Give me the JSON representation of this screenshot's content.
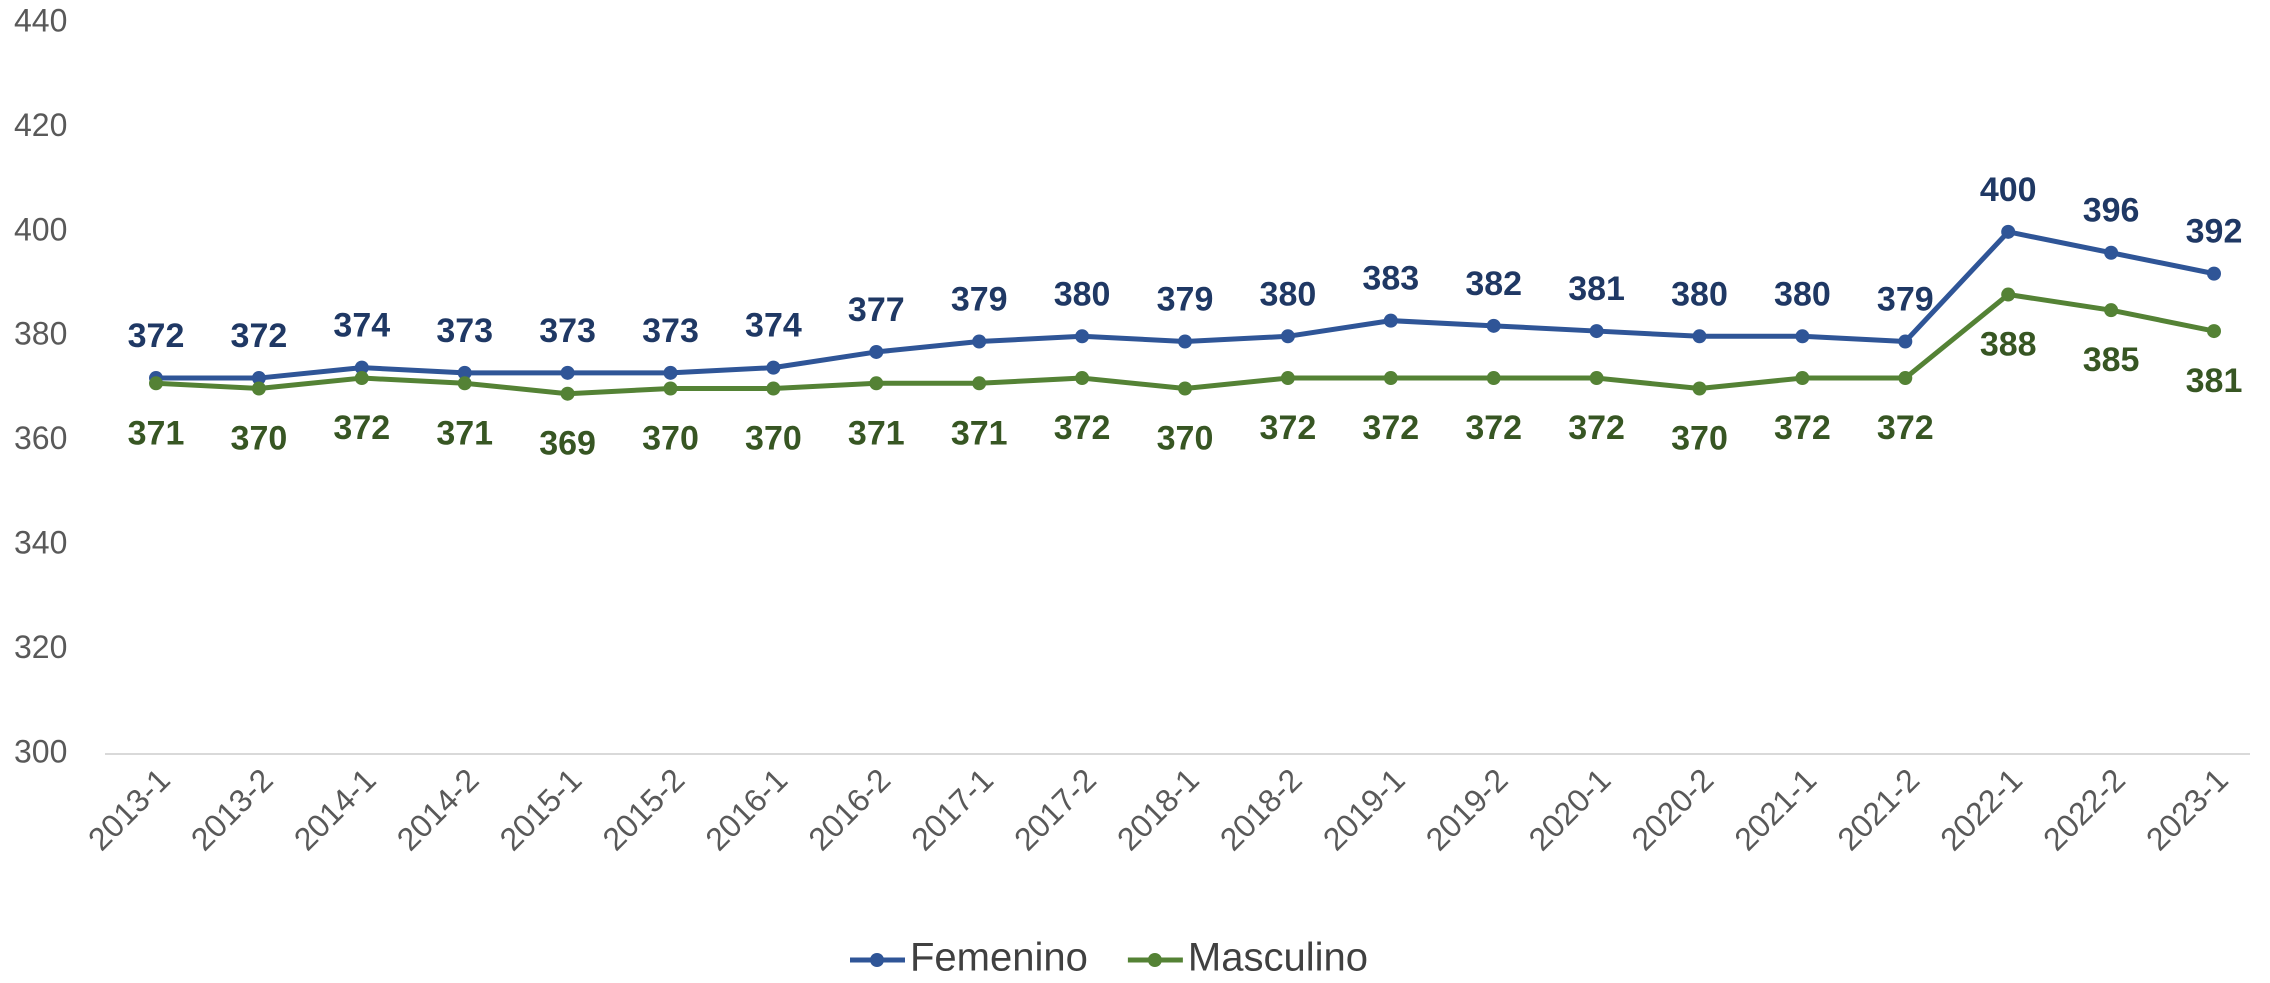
{
  "chart_data": {
    "type": "line",
    "categories": [
      "2013-1",
      "2013-2",
      "2014-1",
      "2014-2",
      "2015-1",
      "2015-2",
      "2016-1",
      "2016-2",
      "2017-1",
      "2017-2",
      "2018-1",
      "2018-2",
      "2019-1",
      "2019-2",
      "2020-1",
      "2020-2",
      "2021-1",
      "2021-2",
      "2022-1",
      "2022-2",
      "2023-1"
    ],
    "series": [
      {
        "name": "Femenino",
        "color": "#2f5597",
        "label_color": "#1f3864",
        "values": [
          372,
          372,
          374,
          373,
          373,
          373,
          374,
          377,
          379,
          380,
          379,
          380,
          383,
          382,
          381,
          380,
          380,
          379,
          400,
          396,
          392
        ]
      },
      {
        "name": "Masculino",
        "color": "#548235",
        "label_color": "#375623",
        "values": [
          371,
          370,
          372,
          371,
          369,
          370,
          370,
          371,
          371,
          372,
          370,
          372,
          372,
          372,
          372,
          370,
          372,
          372,
          388,
          385,
          381
        ]
      }
    ],
    "ylim": [
      300,
      440
    ],
    "yticks": [
      300,
      320,
      340,
      360,
      380,
      400,
      420,
      440
    ],
    "grid": false,
    "legend": "bottom"
  }
}
